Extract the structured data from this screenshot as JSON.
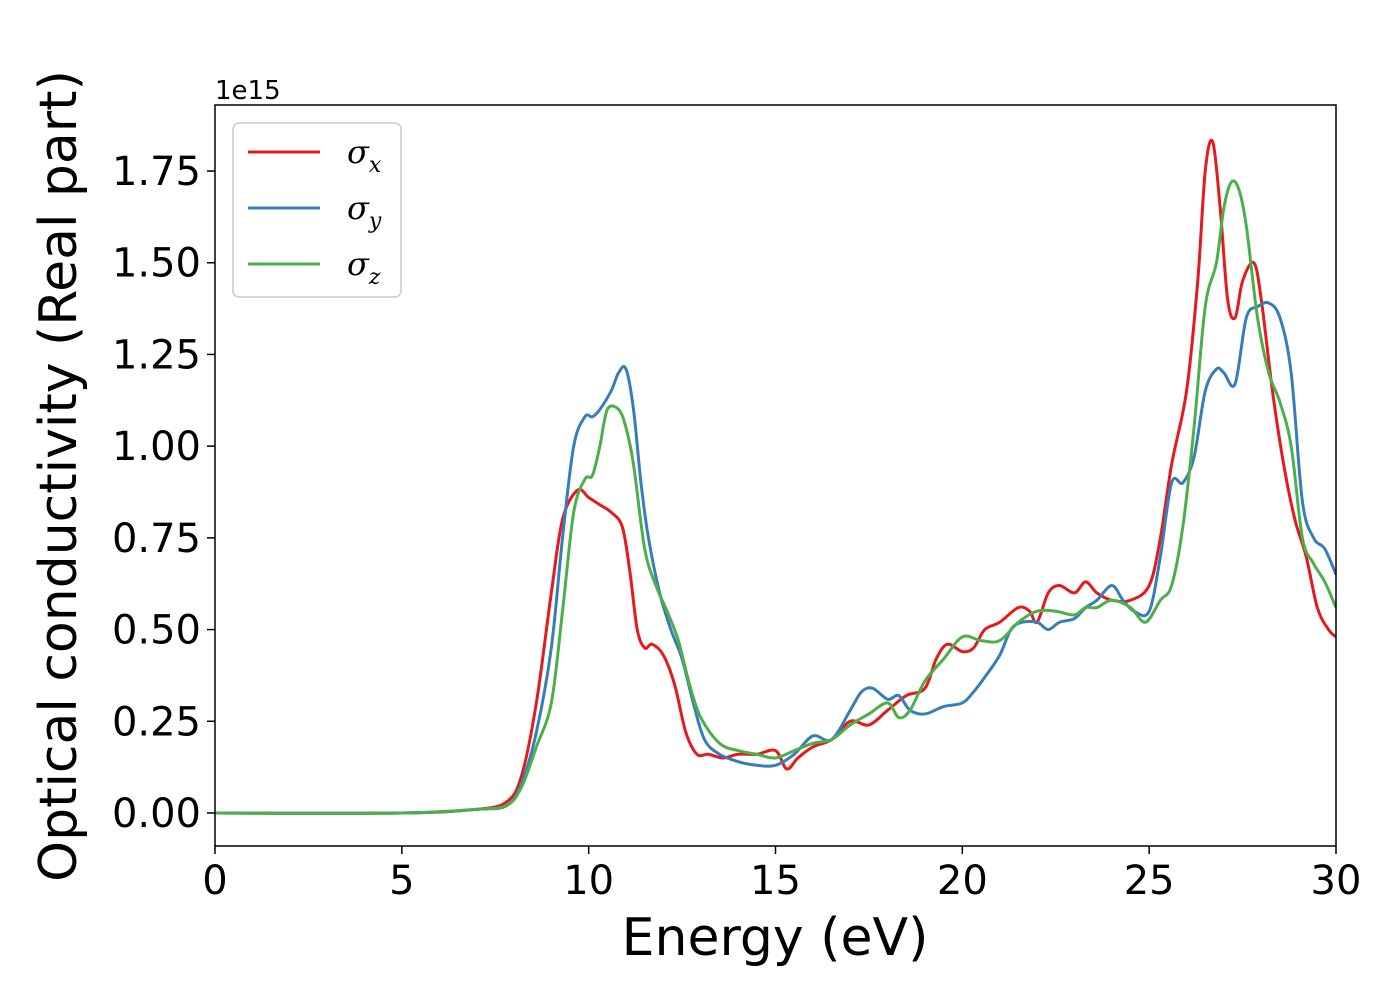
{
  "chart_data": {
    "type": "line",
    "xlabel": "Energy (eV)",
    "ylabel": "Optical conductivity (Real part)",
    "y_offset_label": "1e15",
    "y_scale_factor": 1000000000000000.0,
    "xlim": [
      0,
      30
    ],
    "ylim": [
      -0.09,
      1.93
    ],
    "x_ticks": [
      0,
      5,
      10,
      15,
      20,
      25,
      30
    ],
    "x_tick_labels": [
      "0",
      "5",
      "10",
      "15",
      "20",
      "25",
      "30"
    ],
    "y_ticks": [
      0.0,
      0.25,
      0.5,
      0.75,
      1.0,
      1.25,
      1.5,
      1.75
    ],
    "y_tick_labels": [
      "0.00",
      "0.25",
      "0.50",
      "0.75",
      "1.00",
      "1.25",
      "1.50",
      "1.75"
    ],
    "grid": false,
    "legend_position": "top-left",
    "series": [
      {
        "name": "σ",
        "subscript": "x",
        "color": "#e41a1c",
        "x": [
          0,
          5,
          7.0,
          7.8,
          8.2,
          8.6,
          9.0,
          9.3,
          9.7,
          10.0,
          10.3,
          10.6,
          10.9,
          11.1,
          11.3,
          11.5,
          11.7,
          12.0,
          12.3,
          12.6,
          12.9,
          13.2,
          13.6,
          14.0,
          14.5,
          15.0,
          15.3,
          15.6,
          16.0,
          16.5,
          17.0,
          17.5,
          18.0,
          18.5,
          19.0,
          19.3,
          19.6,
          20.0,
          20.3,
          20.6,
          21.0,
          21.5,
          21.8,
          22.0,
          22.3,
          22.6,
          23.0,
          23.3,
          23.6,
          24.0,
          24.5,
          25.0,
          25.3,
          25.6,
          26.0,
          26.3,
          26.5,
          26.7,
          26.9,
          27.1,
          27.3,
          27.5,
          27.8,
          28.0,
          28.3,
          28.6,
          28.9,
          29.2,
          29.5,
          29.8,
          30.0
        ],
        "y": [
          0.0,
          0.0,
          0.01,
          0.03,
          0.1,
          0.3,
          0.6,
          0.8,
          0.88,
          0.86,
          0.84,
          0.82,
          0.78,
          0.66,
          0.5,
          0.45,
          0.46,
          0.43,
          0.35,
          0.22,
          0.16,
          0.16,
          0.15,
          0.16,
          0.16,
          0.17,
          0.12,
          0.15,
          0.18,
          0.2,
          0.25,
          0.24,
          0.28,
          0.32,
          0.34,
          0.42,
          0.46,
          0.44,
          0.45,
          0.5,
          0.52,
          0.56,
          0.55,
          0.52,
          0.6,
          0.62,
          0.6,
          0.63,
          0.6,
          0.58,
          0.58,
          0.62,
          0.75,
          0.95,
          1.15,
          1.45,
          1.75,
          1.83,
          1.65,
          1.4,
          1.35,
          1.45,
          1.5,
          1.4,
          1.15,
          0.95,
          0.8,
          0.7,
          0.56,
          0.5,
          0.48
        ]
      },
      {
        "name": "σ",
        "subscript": "y",
        "color": "#377eb8",
        "x": [
          0,
          5,
          7.0,
          7.8,
          8.2,
          8.6,
          9.0,
          9.3,
          9.6,
          9.9,
          10.1,
          10.3,
          10.6,
          10.8,
          11.0,
          11.2,
          11.4,
          11.6,
          11.9,
          12.2,
          12.5,
          12.8,
          13.1,
          13.5,
          14.0,
          14.5,
          15.0,
          15.5,
          16.0,
          16.5,
          17.0,
          17.3,
          17.6,
          18.0,
          18.3,
          18.6,
          19.0,
          19.5,
          20.0,
          20.3,
          20.6,
          21.0,
          21.3,
          21.6,
          22.0,
          22.3,
          22.6,
          23.0,
          23.3,
          23.6,
          24.0,
          24.3,
          24.6,
          25.0,
          25.3,
          25.6,
          25.9,
          26.2,
          26.5,
          26.8,
          27.0,
          27.3,
          27.6,
          27.9,
          28.2,
          28.5,
          28.8,
          29.1,
          29.4,
          29.7,
          30.0
        ],
        "y": [
          0.0,
          0.0,
          0.01,
          0.02,
          0.08,
          0.22,
          0.45,
          0.75,
          1.0,
          1.08,
          1.08,
          1.1,
          1.15,
          1.2,
          1.21,
          1.1,
          0.9,
          0.75,
          0.6,
          0.5,
          0.42,
          0.3,
          0.2,
          0.16,
          0.14,
          0.13,
          0.13,
          0.16,
          0.21,
          0.2,
          0.28,
          0.33,
          0.34,
          0.31,
          0.32,
          0.28,
          0.27,
          0.29,
          0.3,
          0.33,
          0.37,
          0.43,
          0.5,
          0.52,
          0.52,
          0.5,
          0.52,
          0.53,
          0.56,
          0.58,
          0.62,
          0.58,
          0.55,
          0.55,
          0.7,
          0.9,
          0.9,
          0.97,
          1.15,
          1.21,
          1.2,
          1.17,
          1.35,
          1.38,
          1.39,
          1.35,
          1.2,
          0.85,
          0.75,
          0.72,
          0.65
        ]
      },
      {
        "name": "σ",
        "subscript": "z",
        "color": "#4daf4a",
        "x": [
          0,
          5,
          7.0,
          7.8,
          8.2,
          8.6,
          9.0,
          9.3,
          9.6,
          9.9,
          10.1,
          10.3,
          10.5,
          10.8,
          11.0,
          11.2,
          11.5,
          11.8,
          12.1,
          12.4,
          12.7,
          13.0,
          13.5,
          14.0,
          14.5,
          15.0,
          15.5,
          16.0,
          16.5,
          17.0,
          17.5,
          18.0,
          18.3,
          18.6,
          19.0,
          19.5,
          20.0,
          20.5,
          21.0,
          21.5,
          22.0,
          22.5,
          23.0,
          23.3,
          23.6,
          24.0,
          24.5,
          24.9,
          25.3,
          25.6,
          25.9,
          26.2,
          26.5,
          26.8,
          27.0,
          27.2,
          27.4,
          27.6,
          27.9,
          28.2,
          28.5,
          28.8,
          29.1,
          29.4,
          29.7,
          30.0
        ],
        "y": [
          0.0,
          0.0,
          0.01,
          0.02,
          0.07,
          0.18,
          0.3,
          0.55,
          0.82,
          0.91,
          0.92,
          1.0,
          1.1,
          1.1,
          1.05,
          0.95,
          0.72,
          0.62,
          0.55,
          0.47,
          0.35,
          0.26,
          0.19,
          0.17,
          0.16,
          0.15,
          0.17,
          0.19,
          0.2,
          0.24,
          0.27,
          0.3,
          0.26,
          0.28,
          0.36,
          0.42,
          0.48,
          0.47,
          0.47,
          0.52,
          0.55,
          0.55,
          0.54,
          0.56,
          0.56,
          0.58,
          0.56,
          0.52,
          0.58,
          0.62,
          0.78,
          1.05,
          1.38,
          1.5,
          1.65,
          1.72,
          1.7,
          1.6,
          1.35,
          1.2,
          1.12,
          1.0,
          0.75,
          0.68,
          0.63,
          0.56
        ]
      }
    ]
  }
}
